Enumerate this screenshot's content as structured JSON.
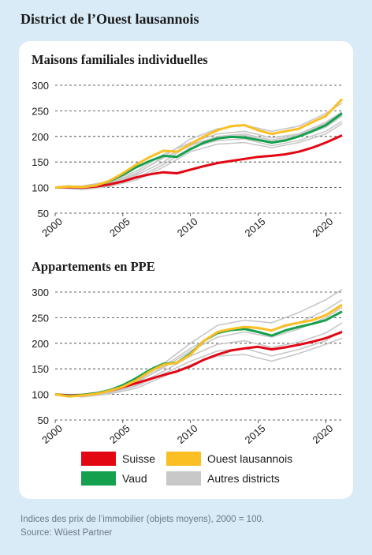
{
  "page": {
    "title": "District de l’Ouest lausannois",
    "note": "Indices des prix de l’immobilier (objets moyens), 2000 = 100.",
    "source": "Source: Wüest Partner"
  },
  "legend": [
    {
      "label": "Suisse",
      "color": "#e30613"
    },
    {
      "label": "Ouest lausannois",
      "color": "#fbbf24"
    },
    {
      "label": "Vaud",
      "color": "#14a04c"
    },
    {
      "label": "Autres districts",
      "color": "#c8c8c8"
    }
  ],
  "chart_data": [
    {
      "type": "line",
      "title": "Maisons familiales individuelles",
      "xlabel": "",
      "ylabel": "",
      "ylim": [
        50,
        300
      ],
      "yticks": [
        "300",
        "250",
        "200",
        "150",
        "100",
        "50"
      ],
      "xlim": [
        2000,
        2021.2
      ],
      "xticks": [
        "2000",
        "2005",
        "2010",
        "2015",
        "2020"
      ],
      "grid": "horizontal dashed",
      "series": [
        {
          "name": "Autres districts",
          "color": "#c8c8c8",
          "x": [
            2000,
            2002,
            2004,
            2006,
            2008,
            2010,
            2012,
            2014,
            2016,
            2018,
            2020,
            2021.2
          ],
          "y": [
            100,
            99,
            108,
            127,
            160,
            195,
            215,
            222,
            210,
            220,
            245,
            265
          ]
        },
        {
          "name": "Autres districts",
          "color": "#c8c8c8",
          "x": [
            2000,
            2002,
            2004,
            2006,
            2008,
            2010,
            2012,
            2014,
            2016,
            2018,
            2020,
            2021.2
          ],
          "y": [
            100,
            97,
            104,
            118,
            145,
            178,
            192,
            195,
            182,
            192,
            210,
            230
          ]
        },
        {
          "name": "Autres districts",
          "color": "#c8c8c8",
          "x": [
            2000,
            2002,
            2004,
            2006,
            2008,
            2010,
            2012,
            2014,
            2016,
            2018,
            2020,
            2021.2
          ],
          "y": [
            100,
            103,
            112,
            132,
            165,
            188,
            205,
            210,
            197,
            205,
            228,
            248
          ]
        },
        {
          "name": "Autres districts",
          "color": "#c8c8c8",
          "x": [
            2000,
            2002,
            2004,
            2006,
            2008,
            2010,
            2012,
            2014,
            2016,
            2018,
            2020,
            2021.2
          ],
          "y": [
            100,
            98,
            106,
            124,
            150,
            185,
            198,
            202,
            190,
            200,
            218,
            240
          ]
        },
        {
          "name": "Autres districts",
          "color": "#c8c8c8",
          "x": [
            2000,
            2002,
            2004,
            2006,
            2008,
            2010,
            2012,
            2014,
            2016,
            2018,
            2020,
            2021.2
          ],
          "y": [
            100,
            101,
            110,
            128,
            158,
            182,
            200,
            205,
            193,
            203,
            225,
            245
          ]
        },
        {
          "name": "Autres districts",
          "color": "#c8c8c8",
          "x": [
            2000,
            2002,
            2004,
            2006,
            2008,
            2010,
            2012,
            2014,
            2016,
            2018,
            2020,
            2021.2
          ],
          "y": [
            100,
            96,
            102,
            115,
            140,
            170,
            185,
            188,
            178,
            188,
            205,
            225
          ]
        },
        {
          "name": "Suisse",
          "color": "#e30613",
          "x": [
            2000,
            2001,
            2002,
            2003,
            2004,
            2005,
            2006,
            2007,
            2008,
            2009,
            2010,
            2011,
            2012,
            2013,
            2014,
            2015,
            2016,
            2017,
            2018,
            2019,
            2020,
            2021.2
          ],
          "y": [
            100,
            101,
            100,
            102,
            106,
            112,
            120,
            126,
            130,
            128,
            135,
            142,
            148,
            152,
            156,
            160,
            162,
            165,
            170,
            178,
            188,
            202
          ]
        },
        {
          "name": "Vaud",
          "color": "#14a04c",
          "x": [
            2000,
            2001,
            2002,
            2003,
            2004,
            2005,
            2006,
            2007,
            2008,
            2009,
            2010,
            2011,
            2012,
            2013,
            2014,
            2015,
            2016,
            2017,
            2018,
            2019,
            2020,
            2021.2
          ],
          "y": [
            100,
            102,
            101,
            104,
            112,
            125,
            140,
            152,
            162,
            160,
            175,
            188,
            196,
            199,
            198,
            193,
            188,
            192,
            200,
            210,
            222,
            245
          ]
        },
        {
          "name": "Ouest lausannois",
          "color": "#fbbf24",
          "x": [
            2000,
            2001,
            2002,
            2003,
            2004,
            2005,
            2006,
            2007,
            2008,
            2009,
            2010,
            2011,
            2012,
            2013,
            2014,
            2015,
            2016,
            2017,
            2018,
            2019,
            2020,
            2021.2
          ],
          "y": [
            100,
            102,
            101,
            104,
            113,
            128,
            145,
            160,
            172,
            170,
            185,
            200,
            212,
            220,
            222,
            212,
            205,
            210,
            215,
            228,
            240,
            273
          ]
        }
      ]
    },
    {
      "type": "line",
      "title": "Appartements en PPE",
      "xlabel": "",
      "ylabel": "",
      "ylim": [
        50,
        300
      ],
      "yticks": [
        "300",
        "250",
        "200",
        "150",
        "100",
        "50"
      ],
      "xlim": [
        2000,
        2021.2
      ],
      "xticks": [
        "2000",
        "2005",
        "2010",
        "2015",
        "2020"
      ],
      "grid": "horizontal dashed",
      "series": [
        {
          "name": "Autres districts",
          "color": "#c8c8c8",
          "x": [
            2000,
            2002,
            2004,
            2006,
            2008,
            2010,
            2012,
            2014,
            2016,
            2018,
            2020,
            2021.2
          ],
          "y": [
            100,
            100,
            108,
            125,
            160,
            200,
            235,
            245,
            240,
            260,
            285,
            305
          ]
        },
        {
          "name": "Autres districts",
          "color": "#c8c8c8",
          "x": [
            2000,
            2002,
            2004,
            2006,
            2008,
            2010,
            2012,
            2014,
            2016,
            2018,
            2020,
            2021.2
          ],
          "y": [
            100,
            96,
            104,
            118,
            145,
            175,
            198,
            205,
            192,
            202,
            220,
            240
          ]
        },
        {
          "name": "Autres districts",
          "color": "#c8c8c8",
          "x": [
            2000,
            2002,
            2004,
            2006,
            2008,
            2010,
            2012,
            2014,
            2016,
            2018,
            2020,
            2021.2
          ],
          "y": [
            100,
            98,
            106,
            122,
            155,
            190,
            220,
            232,
            225,
            240,
            265,
            285
          ]
        },
        {
          "name": "Autres districts",
          "color": "#c8c8c8",
          "x": [
            2000,
            2002,
            2004,
            2006,
            2008,
            2010,
            2012,
            2014,
            2016,
            2018,
            2020,
            2021.2
          ],
          "y": [
            100,
            97,
            103,
            116,
            140,
            165,
            185,
            190,
            175,
            188,
            205,
            225
          ]
        },
        {
          "name": "Autres districts",
          "color": "#c8c8c8",
          "x": [
            2000,
            2002,
            2004,
            2006,
            2008,
            2010,
            2012,
            2014,
            2016,
            2018,
            2020,
            2021.2
          ],
          "y": [
            100,
            99,
            107,
            124,
            152,
            185,
            212,
            222,
            212,
            228,
            250,
            270
          ]
        },
        {
          "name": "Autres districts",
          "color": "#c8c8c8",
          "x": [
            2000,
            2002,
            2004,
            2006,
            2008,
            2010,
            2012,
            2014,
            2016,
            2018,
            2020,
            2021.2
          ],
          "y": [
            100,
            95,
            101,
            112,
            135,
            158,
            175,
            178,
            165,
            180,
            198,
            210
          ]
        },
        {
          "name": "Suisse",
          "color": "#e30613",
          "x": [
            2000,
            2001,
            2002,
            2003,
            2004,
            2005,
            2006,
            2007,
            2008,
            2009,
            2010,
            2011,
            2012,
            2013,
            2014,
            2015,
            2016,
            2017,
            2018,
            2019,
            2020,
            2021.2
          ],
          "y": [
            100,
            98,
            99,
            102,
            107,
            114,
            122,
            130,
            138,
            145,
            155,
            168,
            178,
            186,
            190,
            193,
            188,
            192,
            197,
            203,
            210,
            222
          ]
        },
        {
          "name": "Vaud",
          "color": "#14a04c",
          "x": [
            2000,
            2001,
            2002,
            2003,
            2004,
            2005,
            2006,
            2007,
            2008,
            2009,
            2010,
            2011,
            2012,
            2013,
            2014,
            2015,
            2016,
            2017,
            2018,
            2019,
            2020,
            2021.2
          ],
          "y": [
            100,
            97,
            99,
            102,
            108,
            118,
            132,
            148,
            160,
            162,
            180,
            205,
            220,
            226,
            228,
            222,
            215,
            225,
            232,
            238,
            245,
            262
          ]
        },
        {
          "name": "Ouest lausannois",
          "color": "#fbbf24",
          "x": [
            2000,
            2001,
            2002,
            2003,
            2004,
            2005,
            2006,
            2007,
            2008,
            2009,
            2010,
            2011,
            2012,
            2013,
            2014,
            2015,
            2016,
            2017,
            2018,
            2019,
            2020,
            2021.2
          ],
          "y": [
            100,
            96,
            98,
            101,
            107,
            115,
            128,
            145,
            158,
            162,
            178,
            205,
            222,
            228,
            232,
            230,
            225,
            235,
            240,
            245,
            255,
            275
          ]
        }
      ]
    }
  ]
}
